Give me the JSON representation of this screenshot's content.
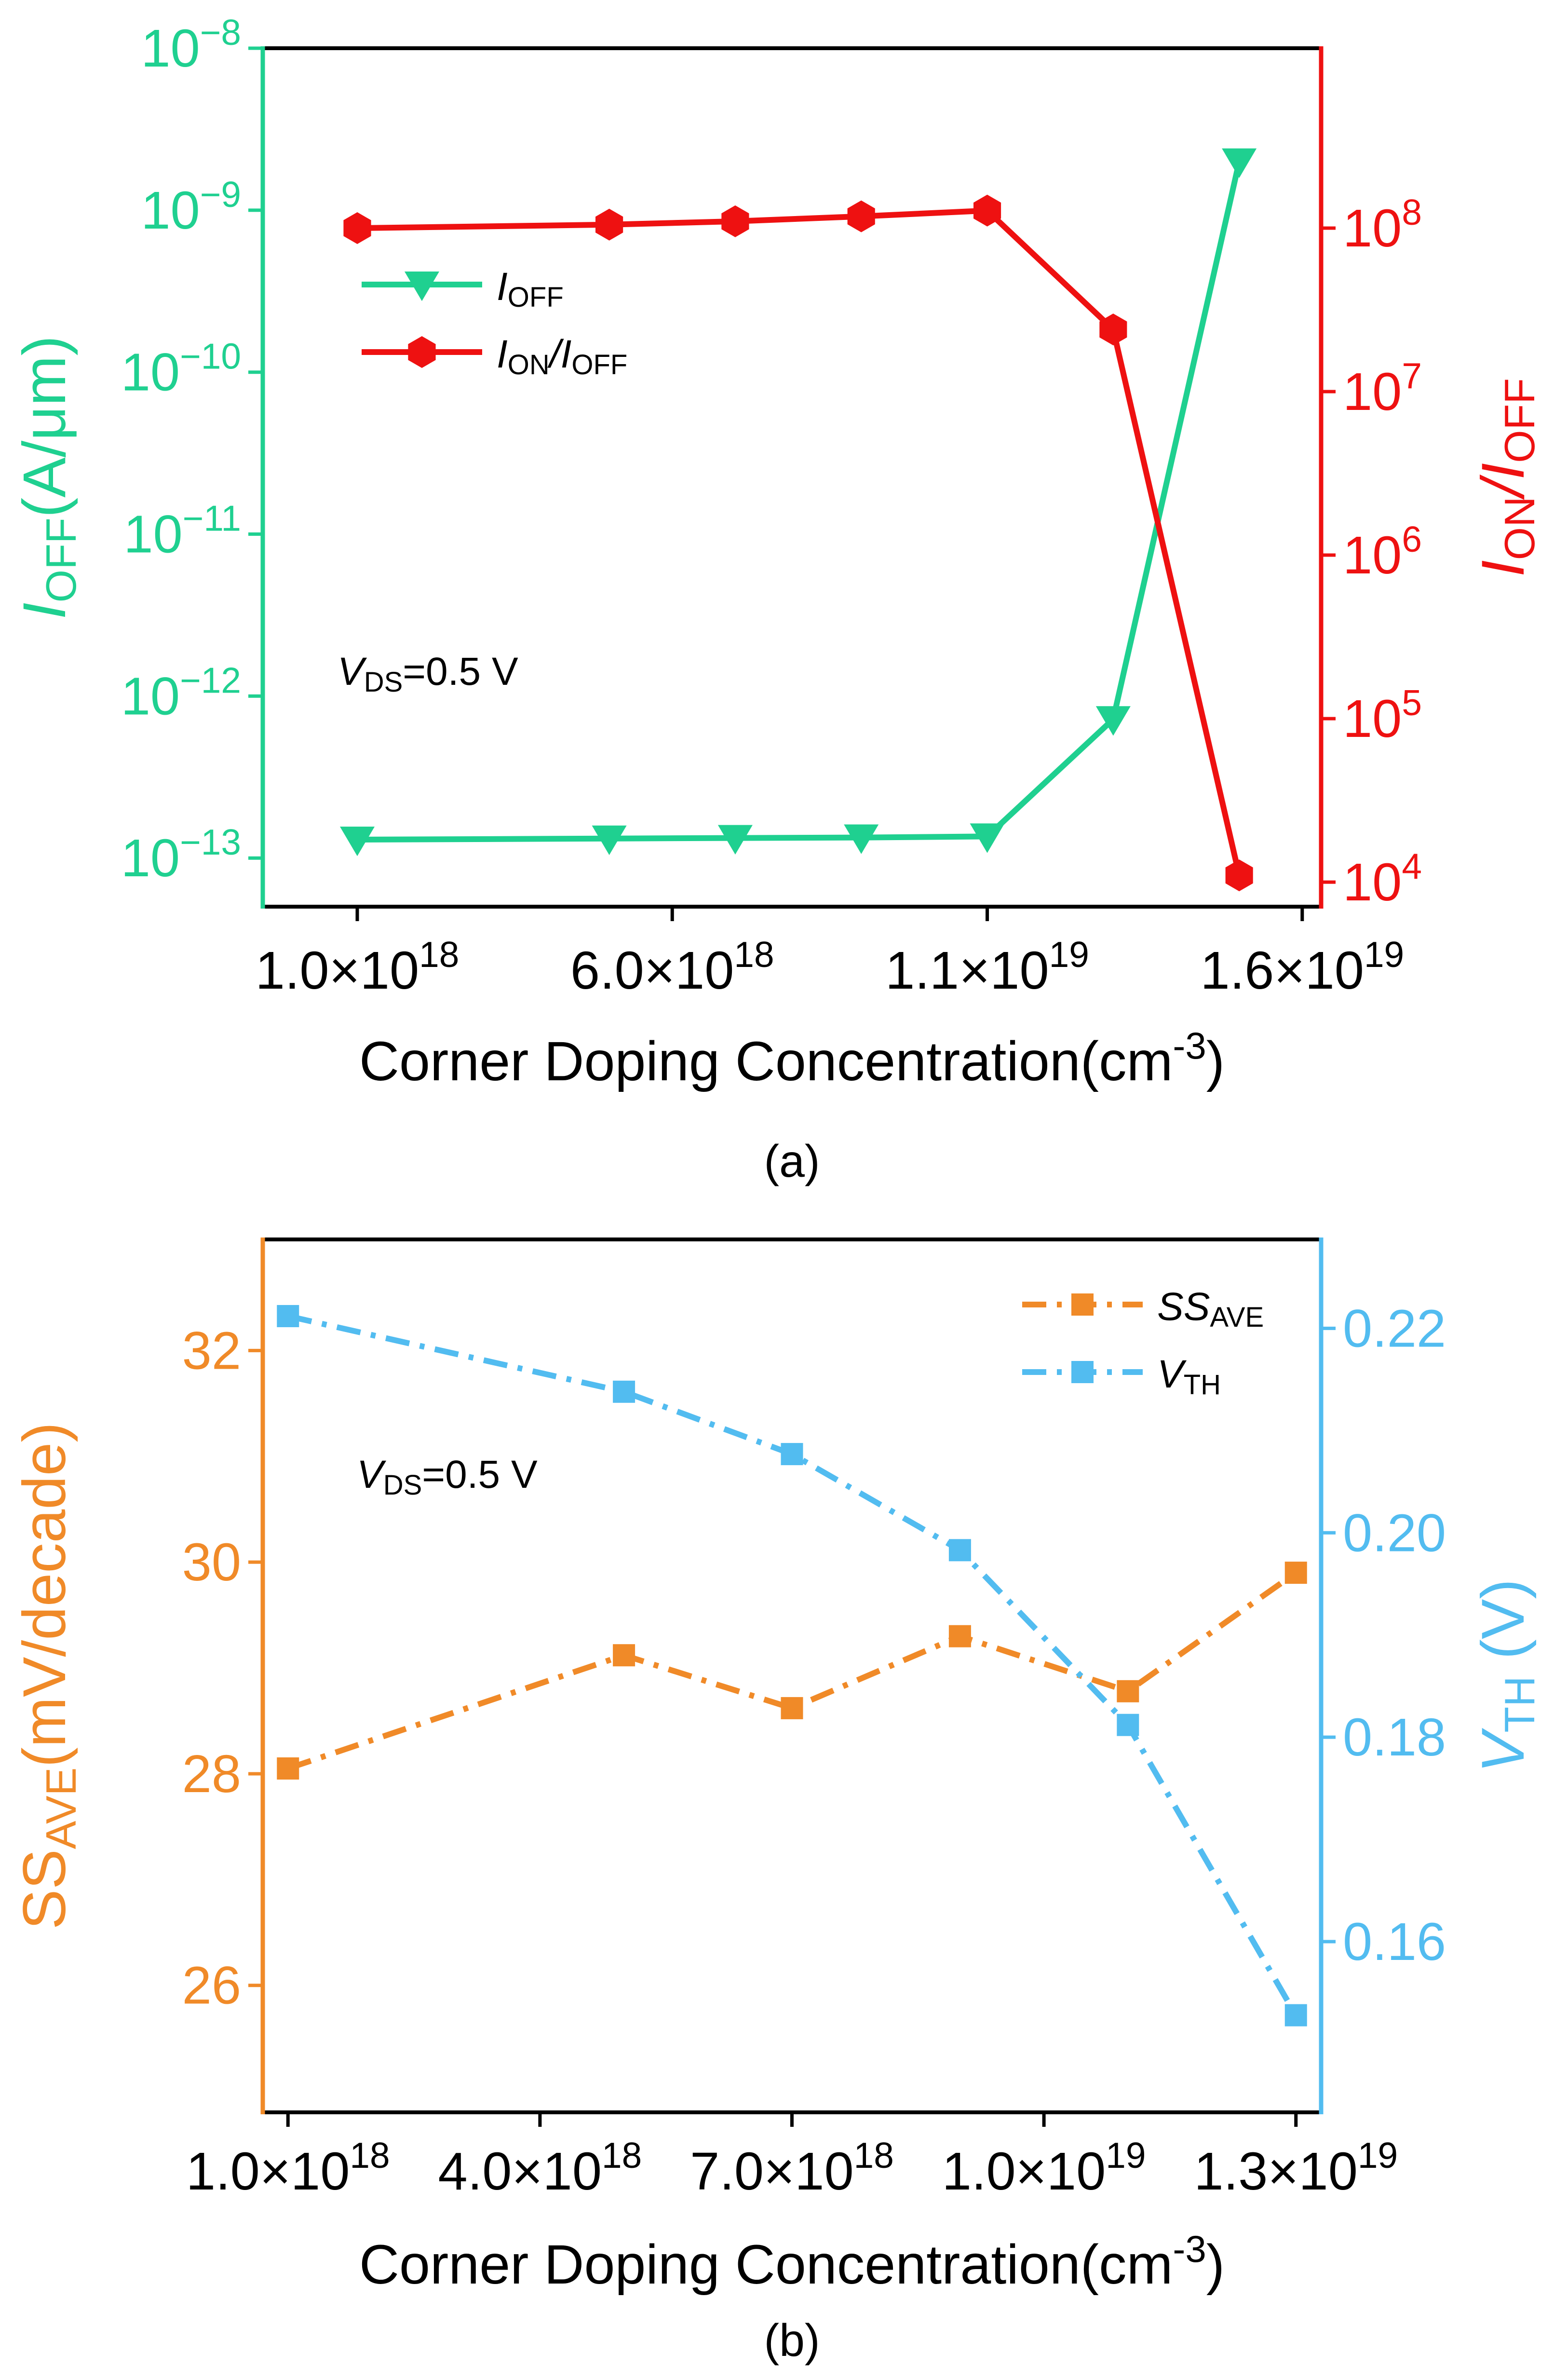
{
  "colors": {
    "green": "#1fd090",
    "red": "#ee1111",
    "orange": "#f08a28",
    "blue": "#52bcf0",
    "black": "#000000"
  },
  "chart_data": [
    {
      "type": "line",
      "panel_label": "(a)",
      "annotation": {
        "main": "V",
        "sub": "DS",
        "rest": "=0.5 V"
      },
      "xlabel": {
        "main": "Corner Doping Concentration(cm",
        "sup": "-3",
        "close": ")"
      },
      "ylabel_left": {
        "main": "I",
        "sub": "OFF",
        "rest": "(A/μm)"
      },
      "ylabel_right": {
        "main": "I",
        "sub": "ON",
        "mid": "/I",
        "sub2": "OFF"
      },
      "x_ticks": [
        {
          "value": 1e+18,
          "mant": "1.0×10",
          "exp": "18"
        },
        {
          "value": 6e+18,
          "mant": "6.0×10",
          "exp": "18"
        },
        {
          "value": 1.1e+19,
          "mant": "1.1×10",
          "exp": "19"
        },
        {
          "value": 1.6e+19,
          "mant": "1.6×10",
          "exp": "19"
        }
      ],
      "xlim": [
        -5e+17,
        1.63e+19
      ],
      "y_left": {
        "scale": "log",
        "lim": [
          -13.3,
          -8
        ],
        "ticks": [
          {
            "value": -13,
            "base": "10",
            "exp": "−13"
          },
          {
            "value": -12,
            "base": "10",
            "exp": "−12"
          },
          {
            "value": -11,
            "base": "10",
            "exp": "−11"
          },
          {
            "value": -10,
            "base": "10",
            "exp": "−10"
          },
          {
            "value": -9,
            "base": "10",
            "exp": "−9"
          },
          {
            "value": -8,
            "base": "10",
            "exp": "−8"
          }
        ]
      },
      "y_right": {
        "scale": "log",
        "lim": [
          3.85,
          9.1
        ],
        "ticks": [
          {
            "value": 4,
            "base": "10",
            "exp": "4"
          },
          {
            "value": 5,
            "base": "10",
            "exp": "5"
          },
          {
            "value": 6,
            "base": "10",
            "exp": "6"
          },
          {
            "value": 7,
            "base": "10",
            "exp": "7"
          },
          {
            "value": 8,
            "base": "10",
            "exp": "8"
          }
        ]
      },
      "x": [
        1e+18,
        5e+18,
        7e+18,
        9e+18,
        1.1e+19,
        1.3e+19,
        1.5e+19
      ],
      "legend": {
        "position": "upper-left"
      },
      "series": [
        {
          "name_main": "I",
          "name_sub": "OFF",
          "axis": "left",
          "color": "#1fd090",
          "marker": "triangle-down",
          "dash": "solid",
          "values": [
            1.3e-13,
            1.32e-13,
            1.33e-13,
            1.34e-13,
            1.36e-13,
            7.2e-13,
            2e-09
          ]
        },
        {
          "name_main": "I",
          "name_sub": "ON",
          "name_mid": "/I",
          "name_sub2": "OFF",
          "axis": "right",
          "color": "#ee1111",
          "marker": "hexagon",
          "dash": "solid",
          "values": [
            100000000.0,
            105000000.0,
            110000000.0,
            118000000.0,
            128000000.0,
            24000000.0,
            11000.0
          ]
        }
      ]
    },
    {
      "type": "line",
      "panel_label": "(b)",
      "annotation": {
        "main": "V",
        "sub": "DS",
        "rest": "=0.5 V"
      },
      "xlabel": {
        "main": "Corner Doping Concentration(cm",
        "sup": "-3",
        "close": ")"
      },
      "ylabel_left": {
        "main": "SS",
        "sub": "AVE",
        "rest": "(mV/decade)"
      },
      "ylabel_right": {
        "main": "V",
        "sub": "TH",
        "rest": " (V)"
      },
      "x_ticks": [
        {
          "value": 1e+18,
          "mant": "1.0×10",
          "exp": "18"
        },
        {
          "value": 4e+18,
          "mant": "4.0×10",
          "exp": "18"
        },
        {
          "value": 7e+18,
          "mant": "7.0×10",
          "exp": "18"
        },
        {
          "value": 1e+19,
          "mant": "1.0×10",
          "exp": "19"
        },
        {
          "value": 1.3e+19,
          "mant": "1.3×10",
          "exp": "19"
        }
      ],
      "xlim": [
        7e+17,
        1.33e+19
      ],
      "y_left": {
        "scale": "linear",
        "lim": [
          24.8,
          33.05
        ],
        "ticks": [
          {
            "value": 26,
            "label": "26"
          },
          {
            "value": 28,
            "label": "28"
          },
          {
            "value": 30,
            "label": "30"
          },
          {
            "value": 32,
            "label": "32"
          }
        ]
      },
      "y_right": {
        "scale": "linear",
        "lim": [
          0.1433,
          0.2287
        ],
        "ticks": [
          {
            "value": 0.16,
            "label": "0.16"
          },
          {
            "value": 0.18,
            "label": "0.18"
          },
          {
            "value": 0.2,
            "label": "0.20"
          },
          {
            "value": 0.22,
            "label": "0.22"
          }
        ]
      },
      "x": [
        1e+18,
        5e+18,
        7e+18,
        9e+18,
        1.1e+19,
        1.3e+19
      ],
      "legend": {
        "position": "upper-right"
      },
      "series": [
        {
          "name_main": "SS",
          "name_sub": "AVE",
          "axis": "left",
          "color": "#f08a28",
          "marker": "square",
          "dash": "dashdot",
          "values": [
            28.05,
            29.12,
            28.62,
            29.3,
            28.78,
            29.9
          ]
        },
        {
          "name_main": "V",
          "name_sub": "TH",
          "axis": "right",
          "color": "#52bcf0",
          "marker": "square",
          "dash": "dashdot",
          "values": [
            0.2212,
            0.2138,
            0.2077,
            0.1983,
            0.1812,
            0.1528
          ]
        }
      ]
    }
  ]
}
